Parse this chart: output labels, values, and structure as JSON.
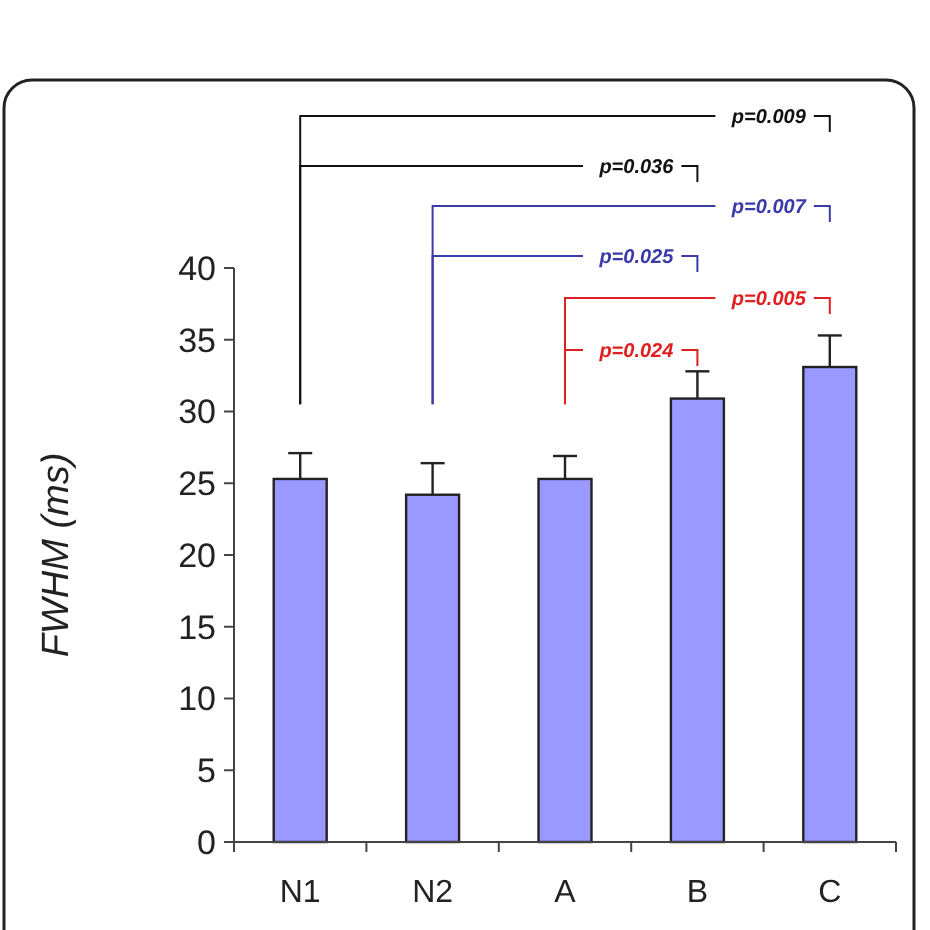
{
  "chart_data": {
    "type": "bar",
    "ylabel": "FWHM (ms)",
    "categories": [
      "N1",
      "N2",
      "A",
      "B",
      "C"
    ],
    "values": [
      25.3,
      24.2,
      25.3,
      30.9,
      33.1
    ],
    "errors": [
      [
        25.3,
        27.1
      ],
      [
        24.2,
        26.4
      ],
      [
        25.3,
        26.9
      ],
      [
        30.9,
        32.8
      ],
      [
        33.1,
        35.3
      ]
    ],
    "color": "#9999ff",
    "ylim": [
      0,
      40
    ],
    "yticks": [
      0,
      5,
      10,
      15,
      20,
      25,
      30,
      35,
      40
    ],
    "grid": false,
    "annotations": [
      "p=0.009",
      "p=0.036",
      "p=0.007",
      "p=0.025",
      "p=0.005",
      "p=0.024"
    ]
  }
}
